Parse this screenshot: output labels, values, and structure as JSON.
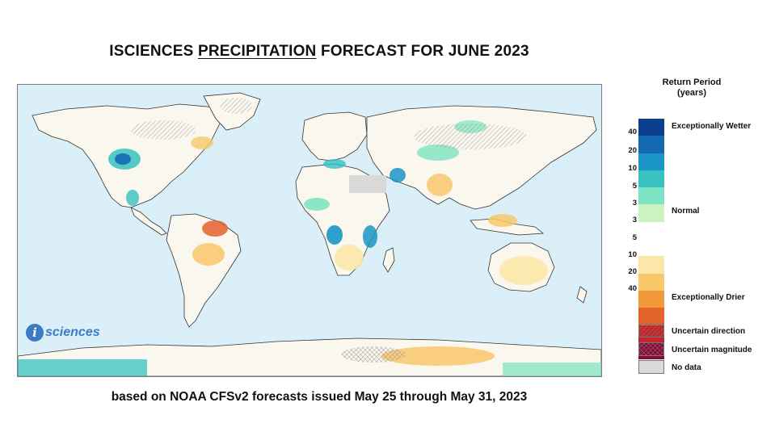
{
  "title": {
    "before": "ISCIENCES ",
    "underlined": "PRECIPITATION",
    "after": " FORECAST FOR JUNE 2023"
  },
  "subtitle": "based on NOAA CFSv2 forecasts issued May 25 through May 31, 2023",
  "logo": {
    "mark": "i",
    "text": "sciences"
  },
  "legend": {
    "heading_line1": "Return Period",
    "heading_line2": "(years)",
    "wet_label": "Exceptionally Wetter",
    "normal_label": "Normal",
    "dry_label": "Exceptionally Drier",
    "wet_ticks": [
      "40",
      "20",
      "10",
      "5",
      "3"
    ],
    "dry_ticks": [
      "3",
      "5",
      "10",
      "20",
      "40"
    ],
    "colors": [
      "#0b3f8c",
      "#1468b4",
      "#1b95c6",
      "#35c2c0",
      "#7ee3c0",
      "#c9f4c2",
      "#ffffff",
      "#ffffff",
      "#fbe7a8",
      "#f8c86b",
      "#f29a3a",
      "#e4622c",
      "#c0272d",
      "#8a0a36"
    ],
    "keys": {
      "uncertain_direction": "Uncertain direction",
      "uncertain_magnitude": "Uncertain magnitude",
      "no_data": "No data"
    }
  },
  "map": {
    "ocean_color": "#dbeff9",
    "land_color": "#faf7ee"
  }
}
